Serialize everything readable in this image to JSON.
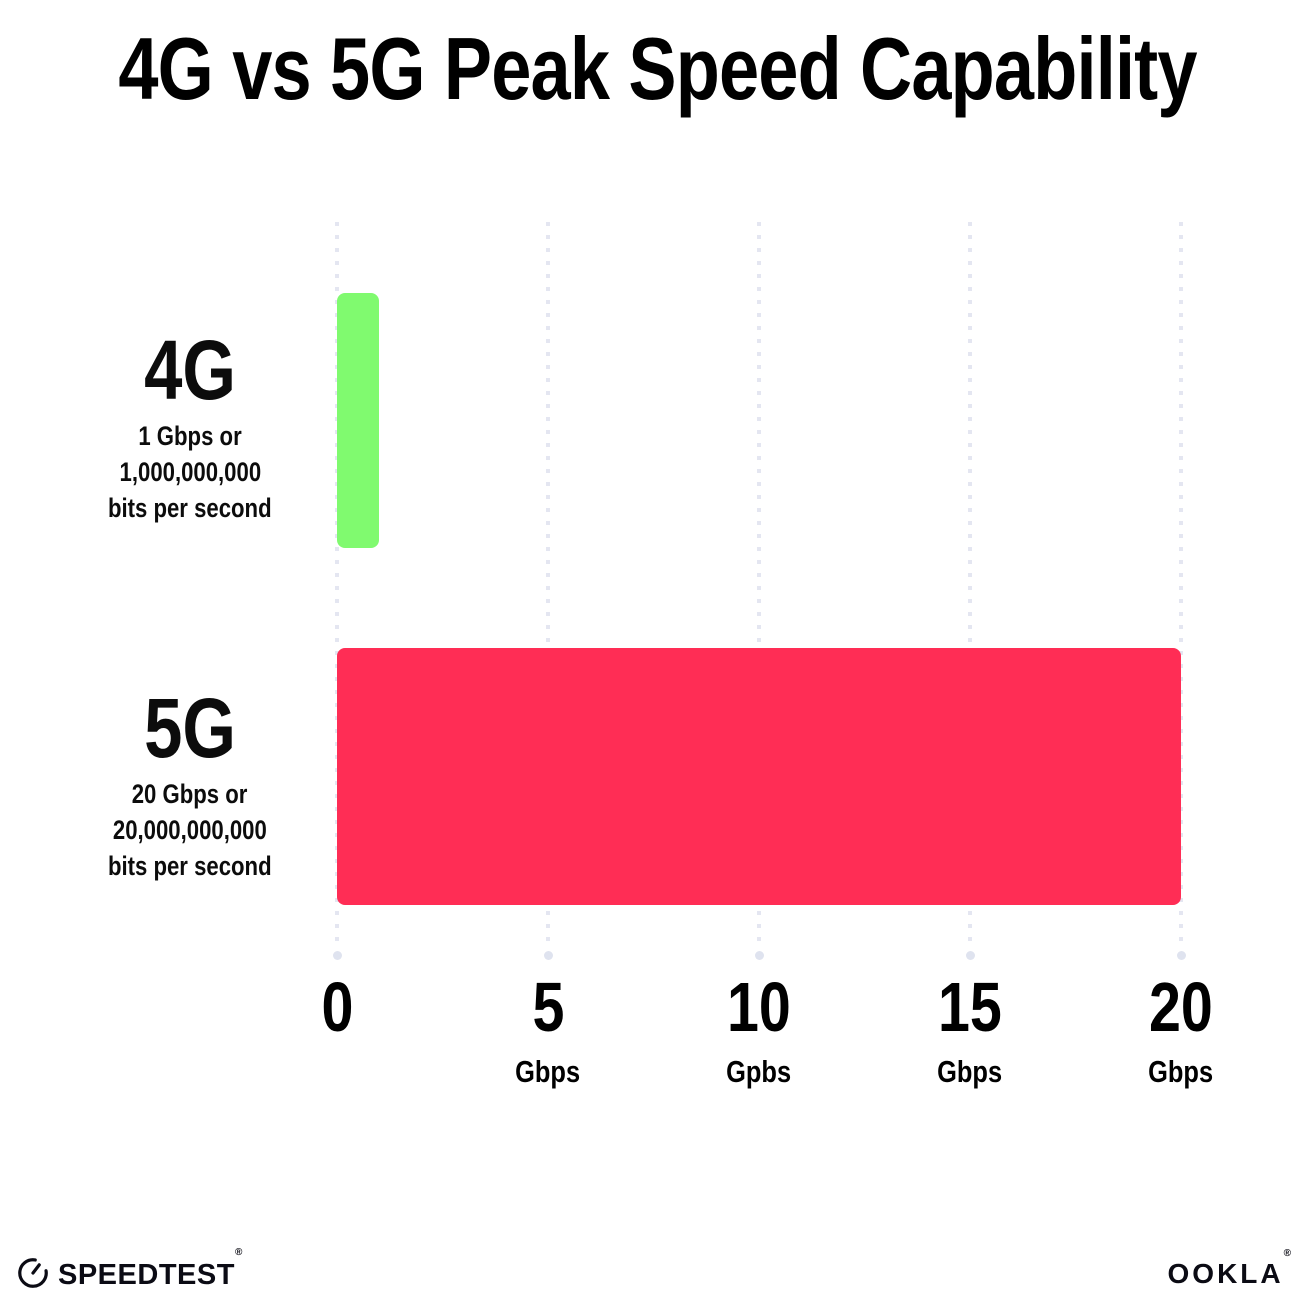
{
  "title": "4G vs 5G Peak Speed Capability",
  "chart_data": {
    "type": "bar",
    "orientation": "horizontal",
    "title": "4G vs 5G Peak Speed Capability",
    "categories": [
      "4G",
      "5G"
    ],
    "values": [
      1,
      20
    ],
    "value_unit": "Gbps",
    "xlim": [
      0,
      20
    ],
    "grid": "vertical dotted gridlines at 0, 5, 10, 15, 20",
    "bar_colors": [
      "#80FA6F",
      "#FF2D55"
    ],
    "x_ticks": [
      {
        "value": 0,
        "label": "0",
        "unit": ""
      },
      {
        "value": 5,
        "label": "5",
        "unit": "Gbps"
      },
      {
        "value": 10,
        "label": "10",
        "unit": "Gpbs"
      },
      {
        "value": 15,
        "label": "15",
        "unit": "Gbps"
      },
      {
        "value": 20,
        "label": "20",
        "unit": "Gbps"
      }
    ]
  },
  "rows": [
    {
      "name": "4G",
      "desc_line1": "1 Gbps or",
      "desc_line2": "1,000,000,000",
      "desc_line3": "bits per second",
      "value": 1,
      "color": "#80FA6F"
    },
    {
      "name": "5G",
      "desc_line1": "20 Gbps or",
      "desc_line2": "20,000,000,000",
      "desc_line3": "bits per second",
      "value": 20,
      "color": "#FF2D55"
    }
  ],
  "footer": {
    "speedtest_label": "SPEEDTEST",
    "speedtest_mark": "®",
    "speedtest_icon": "gauge-icon",
    "ookla_label": "OOKLA",
    "ookla_mark": "®"
  },
  "colors": {
    "background": "#ffffff",
    "text": "#000000",
    "gridline": "#e4e6f1",
    "grid_end_dot": "#dfe3ef",
    "bar_4g": "#80FA6F",
    "bar_5g": "#FF2D55"
  }
}
